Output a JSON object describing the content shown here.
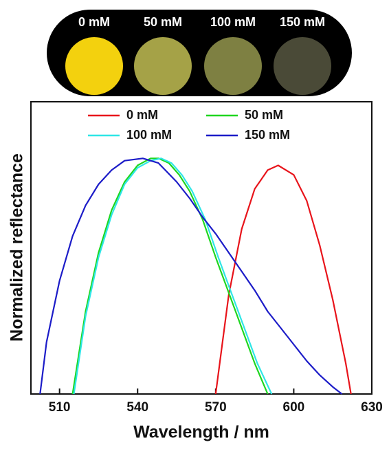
{
  "panel": {
    "samples": [
      {
        "label": "0 mM",
        "color": "#f3d10e"
      },
      {
        "label": "50 mM",
        "color": "#a5a247"
      },
      {
        "label": "100 mM",
        "color": "#7e8042"
      },
      {
        "label": "150 mM",
        "color": "#4a4a37"
      }
    ]
  },
  "chart_data": {
    "type": "line",
    "xlabel": "Wavelength / nm",
    "ylabel": "Normalized reflectance",
    "xlim": [
      499,
      630
    ],
    "ylim": [
      0,
      1.24
    ],
    "xticks": [
      510,
      540,
      570,
      600,
      630
    ],
    "series": [
      {
        "name": "0 mM",
        "color": "#e8141b",
        "x": [
          570,
          575,
          580,
          585,
          590,
          594,
          600,
          605,
          610,
          615,
          620,
          622
        ],
        "values": [
          0,
          0.42,
          0.7,
          0.87,
          0.95,
          0.97,
          0.93,
          0.82,
          0.63,
          0.4,
          0.13,
          0
        ]
      },
      {
        "name": "50 mM",
        "color": "#1fd61f",
        "x": [
          515,
          520,
          525,
          530,
          535,
          540,
          545,
          548,
          552,
          556,
          560,
          565,
          570,
          575,
          580,
          585,
          590
        ],
        "values": [
          0,
          0.35,
          0.6,
          0.78,
          0.9,
          0.97,
          1.0,
          1.0,
          0.98,
          0.93,
          0.86,
          0.74,
          0.58,
          0.43,
          0.28,
          0.13,
          0
        ]
      },
      {
        "name": "100 mM",
        "color": "#2ee6e6",
        "x": [
          515.5,
          520,
          525,
          530,
          535,
          540,
          545,
          549,
          553,
          557,
          561,
          566,
          571,
          576,
          581,
          586,
          591.5
        ],
        "values": [
          0,
          0.33,
          0.58,
          0.76,
          0.89,
          0.96,
          0.99,
          1.0,
          0.98,
          0.93,
          0.86,
          0.74,
          0.58,
          0.43,
          0.28,
          0.13,
          0
        ]
      },
      {
        "name": "150 mM",
        "color": "#1c1cc8",
        "x": [
          502.5,
          505,
          510,
          515,
          520,
          525,
          530,
          535,
          542,
          548,
          555,
          560,
          565,
          570,
          575,
          580,
          585,
          590,
          595,
          600,
          605,
          610,
          615,
          618.5
        ],
        "values": [
          0,
          0.22,
          0.48,
          0.67,
          0.8,
          0.89,
          0.95,
          0.99,
          1.0,
          0.98,
          0.9,
          0.83,
          0.75,
          0.68,
          0.6,
          0.52,
          0.44,
          0.35,
          0.28,
          0.21,
          0.14,
          0.08,
          0.03,
          0
        ]
      }
    ]
  }
}
